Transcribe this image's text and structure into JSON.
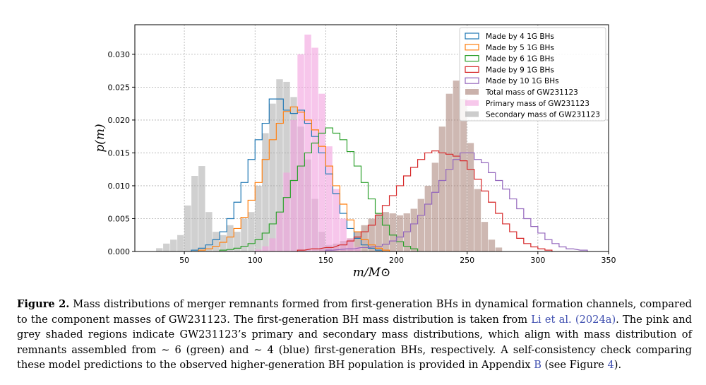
{
  "chart_data": {
    "type": "histogram",
    "xlabel": "m/M⊙",
    "ylabel": "p(m)",
    "xlim": [
      15,
      350
    ],
    "ylim": [
      0,
      0.0345
    ],
    "xticks": [
      50,
      100,
      150,
      200,
      250,
      300,
      350
    ],
    "yticks": [
      0.0,
      0.005,
      0.01,
      0.015,
      0.02,
      0.025,
      0.03
    ],
    "ytick_labels": [
      "0.000",
      "0.005",
      "0.010",
      "0.015",
      "0.020",
      "0.025",
      "0.030"
    ],
    "grid": true,
    "legend_position": "top-right",
    "bin_width": 5,
    "series": [
      {
        "name": "Made by 4 1G BHs",
        "style": "step",
        "color": "#1f77b4",
        "bins": [
          [
            55,
            0.0002
          ],
          [
            60,
            0.0005
          ],
          [
            65,
            0.001
          ],
          [
            70,
            0.0018
          ],
          [
            75,
            0.003
          ],
          [
            80,
            0.005
          ],
          [
            85,
            0.0075
          ],
          [
            90,
            0.0105
          ],
          [
            95,
            0.014
          ],
          [
            100,
            0.017
          ],
          [
            105,
            0.0195
          ],
          [
            110,
            0.0232
          ],
          [
            115,
            0.0232
          ],
          [
            120,
            0.0215
          ],
          [
            125,
            0.021
          ],
          [
            130,
            0.0215
          ],
          [
            135,
            0.0195
          ],
          [
            140,
            0.0175
          ],
          [
            145,
            0.015
          ],
          [
            150,
            0.0118
          ],
          [
            155,
            0.0088
          ],
          [
            160,
            0.0058
          ],
          [
            165,
            0.0035
          ],
          [
            170,
            0.002
          ],
          [
            175,
            0.001
          ],
          [
            180,
            0.0005
          ],
          [
            185,
            0.0002
          ]
        ]
      },
      {
        "name": "Made by 5 1G BHs",
        "style": "step",
        "color": "#ff7f0e",
        "bins": [
          [
            60,
            0.0002
          ],
          [
            65,
            0.0004
          ],
          [
            70,
            0.0008
          ],
          [
            75,
            0.0014
          ],
          [
            80,
            0.0022
          ],
          [
            85,
            0.0035
          ],
          [
            90,
            0.0052
          ],
          [
            95,
            0.0078
          ],
          [
            100,
            0.0105
          ],
          [
            105,
            0.014
          ],
          [
            110,
            0.017
          ],
          [
            115,
            0.0195
          ],
          [
            120,
            0.0213
          ],
          [
            125,
            0.022
          ],
          [
            130,
            0.0212
          ],
          [
            135,
            0.02
          ],
          [
            140,
            0.0185
          ],
          [
            145,
            0.016
          ],
          [
            150,
            0.013
          ],
          [
            155,
            0.01
          ],
          [
            160,
            0.0072
          ],
          [
            165,
            0.0048
          ],
          [
            170,
            0.003
          ],
          [
            175,
            0.0018
          ],
          [
            180,
            0.001
          ],
          [
            185,
            0.0005
          ],
          [
            190,
            0.0002
          ]
        ]
      },
      {
        "name": "Made by 6 1G BHs",
        "style": "step",
        "color": "#2ca02c",
        "bins": [
          [
            75,
            0.0002
          ],
          [
            80,
            0.0003
          ],
          [
            85,
            0.0005
          ],
          [
            90,
            0.0008
          ],
          [
            95,
            0.0012
          ],
          [
            100,
            0.0018
          ],
          [
            105,
            0.0028
          ],
          [
            110,
            0.0042
          ],
          [
            115,
            0.006
          ],
          [
            120,
            0.0082
          ],
          [
            125,
            0.0108
          ],
          [
            130,
            0.013
          ],
          [
            135,
            0.015
          ],
          [
            140,
            0.0165
          ],
          [
            145,
            0.018
          ],
          [
            150,
            0.0188
          ],
          [
            155,
            0.018
          ],
          [
            160,
            0.017
          ],
          [
            165,
            0.0152
          ],
          [
            170,
            0.013
          ],
          [
            175,
            0.0105
          ],
          [
            180,
            0.008
          ],
          [
            185,
            0.0058
          ],
          [
            190,
            0.004
          ],
          [
            195,
            0.0025
          ],
          [
            200,
            0.0015
          ],
          [
            205,
            0.0008
          ],
          [
            210,
            0.0004
          ]
        ]
      },
      {
        "name": "Made by 9 1G BHs",
        "style": "step",
        "color": "#d62728",
        "bins": [
          [
            130,
            0.0002
          ],
          [
            140,
            0.0004
          ],
          [
            150,
            0.0006
          ],
          [
            160,
            0.001
          ],
          [
            165,
            0.0016
          ],
          [
            170,
            0.0022
          ],
          [
            175,
            0.003
          ],
          [
            180,
            0.004
          ],
          [
            185,
            0.0055
          ],
          [
            190,
            0.007
          ],
          [
            195,
            0.0085
          ],
          [
            200,
            0.01
          ],
          [
            205,
            0.0115
          ],
          [
            210,
            0.0128
          ],
          [
            215,
            0.014
          ],
          [
            220,
            0.015
          ],
          [
            225,
            0.0153
          ],
          [
            230,
            0.015
          ],
          [
            235,
            0.0148
          ],
          [
            240,
            0.0145
          ],
          [
            245,
            0.0138
          ],
          [
            250,
            0.0125
          ],
          [
            255,
            0.011
          ],
          [
            260,
            0.0092
          ],
          [
            265,
            0.0075
          ],
          [
            270,
            0.0058
          ],
          [
            275,
            0.0042
          ],
          [
            280,
            0.003
          ],
          [
            285,
            0.002
          ],
          [
            290,
            0.0012
          ],
          [
            295,
            0.0007
          ],
          [
            300,
            0.0004
          ],
          [
            305,
            0.0002
          ]
        ]
      },
      {
        "name": "Made by 10 1G BHs",
        "style": "step",
        "color": "#9467bd",
        "bins": [
          [
            150,
            0.0002
          ],
          [
            165,
            0.0004
          ],
          [
            175,
            0.0006
          ],
          [
            185,
            0.0008
          ],
          [
            190,
            0.0011
          ],
          [
            195,
            0.0016
          ],
          [
            200,
            0.0022
          ],
          [
            205,
            0.003
          ],
          [
            210,
            0.0042
          ],
          [
            215,
            0.0055
          ],
          [
            220,
            0.0072
          ],
          [
            225,
            0.009
          ],
          [
            230,
            0.0108
          ],
          [
            235,
            0.0125
          ],
          [
            240,
            0.014
          ],
          [
            245,
            0.015
          ],
          [
            250,
            0.015
          ],
          [
            255,
            0.014
          ],
          [
            260,
            0.0135
          ],
          [
            265,
            0.012
          ],
          [
            270,
            0.0108
          ],
          [
            275,
            0.0095
          ],
          [
            280,
            0.008
          ],
          [
            285,
            0.0065
          ],
          [
            290,
            0.005
          ],
          [
            295,
            0.0038
          ],
          [
            300,
            0.0028
          ],
          [
            305,
            0.0018
          ],
          [
            310,
            0.0012
          ],
          [
            315,
            0.0007
          ],
          [
            320,
            0.0004
          ],
          [
            330,
            0.0002
          ]
        ]
      },
      {
        "name": "Total mass of GW231123",
        "style": "filled",
        "color": "#a67d73",
        "bins": [
          [
            145,
            0.0004
          ],
          [
            150,
            0.0008
          ],
          [
            155,
            0.0012
          ],
          [
            160,
            0.0016
          ],
          [
            165,
            0.002
          ],
          [
            170,
            0.003
          ],
          [
            175,
            0.004
          ],
          [
            180,
            0.005
          ],
          [
            185,
            0.0058
          ],
          [
            190,
            0.006
          ],
          [
            195,
            0.0058
          ],
          [
            200,
            0.0055
          ],
          [
            205,
            0.0058
          ],
          [
            210,
            0.0065
          ],
          [
            215,
            0.008
          ],
          [
            220,
            0.01
          ],
          [
            225,
            0.0135
          ],
          [
            230,
            0.019
          ],
          [
            235,
            0.024
          ],
          [
            240,
            0.026
          ],
          [
            245,
            0.0232
          ],
          [
            250,
            0.0165
          ],
          [
            255,
            0.0095
          ],
          [
            260,
            0.0045
          ],
          [
            265,
            0.0018
          ],
          [
            270,
            0.0006
          ]
        ]
      },
      {
        "name": "Primary mass of GW231123",
        "style": "filled",
        "color": "#f2a3de",
        "bins": [
          [
            100,
            0.0003
          ],
          [
            105,
            0.0008
          ],
          [
            110,
            0.002
          ],
          [
            115,
            0.006
          ],
          [
            120,
            0.012
          ],
          [
            125,
            0.02
          ],
          [
            130,
            0.03
          ],
          [
            135,
            0.033
          ],
          [
            140,
            0.031
          ],
          [
            145,
            0.024
          ],
          [
            150,
            0.016
          ],
          [
            155,
            0.0095
          ],
          [
            160,
            0.005
          ],
          [
            165,
            0.002
          ],
          [
            170,
            0.0007
          ]
        ]
      },
      {
        "name": "Secondary mass of GW231123",
        "style": "filled",
        "color": "#aaaaaa",
        "bins": [
          [
            30,
            0.0005
          ],
          [
            35,
            0.0012
          ],
          [
            40,
            0.0018
          ],
          [
            45,
            0.0025
          ],
          [
            50,
            0.007
          ],
          [
            55,
            0.0115
          ],
          [
            60,
            0.013
          ],
          [
            65,
            0.006
          ],
          [
            70,
            0.003
          ],
          [
            75,
            0.0025
          ],
          [
            80,
            0.004
          ],
          [
            85,
            0.003
          ],
          [
            90,
            0.005
          ],
          [
            95,
            0.006
          ],
          [
            100,
            0.01
          ],
          [
            105,
            0.018
          ],
          [
            110,
            0.0225
          ],
          [
            115,
            0.0262
          ],
          [
            120,
            0.0258
          ],
          [
            125,
            0.0235
          ],
          [
            130,
            0.019
          ],
          [
            135,
            0.014
          ],
          [
            140,
            0.008
          ],
          [
            145,
            0.003
          ],
          [
            150,
            0.001
          ]
        ]
      }
    ]
  },
  "caption": {
    "label": "Figure 2.",
    "part1": " Mass distributions of merger remnants formed from first-generation BHs in dynamical formation channels, compared to the component masses of GW231123. The first-generation BH mass distribution is taken from ",
    "cite1": "Li et al. (2024a)",
    "part2": ". The pink and grey shaded regions indicate GW231123’s primary and secondary mass distributions, which align with mass distribution of remnants assembled from ∼ 6 (green) and ∼ 4 (blue) first-generation BHs, respectively. A self-consistency check comparing these model predictions to the observed higher-generation BH population is provided in Appendix ",
    "cite2": "B",
    "part3": " (see Figure ",
    "cite3": "4",
    "part4": ")."
  }
}
